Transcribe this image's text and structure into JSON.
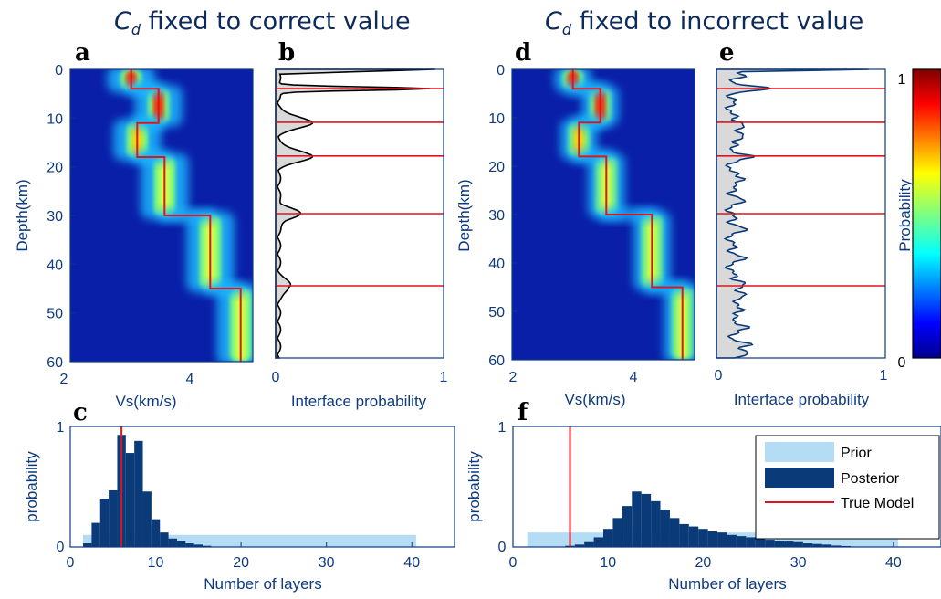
{
  "titles": {
    "left_main": "C",
    "left_sub": "d",
    "left_rest": " fixed to correct value",
    "right_main": "C",
    "right_sub": "d",
    "right_rest": " fixed to incorrect value"
  },
  "panel_letters": [
    "a",
    "b",
    "c",
    "d",
    "e",
    "f"
  ],
  "colors": {
    "axis": "#0d3a80",
    "true_model": "#e0141e",
    "prior": "#b4dcf5",
    "posterior": "#0a3a78",
    "heat_background": "#0a1fa8",
    "interface_fill": "#d9d9d9",
    "interface_line_b": "#000000",
    "interface_line_e": "#0a3a78"
  },
  "chart_data": [
    {
      "id": "a",
      "type": "heatmap",
      "xlabel": "Vs(km/s)",
      "ylabel": "Depth(km)",
      "xlim": [
        2,
        5
      ],
      "ylim": [
        0,
        60
      ],
      "xticks": [
        "2",
        "4"
      ],
      "yticks": [
        "0",
        "10",
        "20",
        "30",
        "40",
        "50",
        "60"
      ],
      "true_model": {
        "depth": [
          0,
          4,
          4,
          11,
          11,
          18,
          18,
          30,
          30,
          45,
          45,
          60
        ],
        "vs": [
          3.0,
          3.0,
          3.45,
          3.45,
          3.1,
          3.1,
          3.55,
          3.55,
          4.3,
          4.3,
          4.8,
          4.8
        ]
      }
    },
    {
      "id": "b",
      "type": "area",
      "xlabel": "Interface probability",
      "xlim": [
        0,
        1
      ],
      "ylim": [
        0,
        60
      ],
      "xticks": [
        "0",
        "1"
      ],
      "interface_depths": [
        4,
        11,
        18,
        30,
        45
      ],
      "peak_probabilities": [
        0.9,
        0.2,
        0.2,
        0.12,
        0.07
      ]
    },
    {
      "id": "c",
      "type": "bar",
      "xlabel": "Number of layers",
      "ylabel": "probability",
      "xlim": [
        0,
        45
      ],
      "ylim": [
        0,
        1
      ],
      "xticks": [
        "0",
        "10",
        "20",
        "30",
        "40"
      ],
      "yticks": [
        "0",
        "1"
      ],
      "true_model_layers": 6,
      "prior": {
        "min": 2,
        "max": 40,
        "value": 0.1
      },
      "posterior": {
        "x": [
          2,
          3,
          4,
          5,
          6,
          7,
          8,
          9,
          10,
          11,
          12,
          13,
          14,
          15,
          16
        ],
        "values": [
          0.03,
          0.2,
          0.4,
          0.47,
          0.93,
          0.78,
          0.88,
          0.46,
          0.23,
          0.12,
          0.07,
          0.05,
          0.03,
          0.02,
          0.01
        ]
      }
    },
    {
      "id": "d",
      "type": "heatmap",
      "xlabel": "Vs(km/s)",
      "ylabel": "Depth(km)",
      "xlim": [
        2,
        5
      ],
      "ylim": [
        0,
        60
      ],
      "xticks": [
        "2",
        "4"
      ],
      "yticks": [
        "0",
        "10",
        "20",
        "30",
        "40",
        "50",
        "60"
      ],
      "true_model": {
        "depth": [
          0,
          4,
          4,
          11,
          11,
          18,
          18,
          30,
          30,
          45,
          45,
          60
        ],
        "vs": [
          3.0,
          3.0,
          3.45,
          3.45,
          3.1,
          3.1,
          3.55,
          3.55,
          4.3,
          4.3,
          4.8,
          4.8
        ]
      }
    },
    {
      "id": "e",
      "type": "area",
      "xlabel": "Interface probability",
      "xlim": [
        0,
        1
      ],
      "ylim": [
        0,
        60
      ],
      "xticks": [
        "0",
        "1"
      ],
      "interface_depths": [
        4,
        11,
        18,
        30,
        45
      ]
    },
    {
      "id": "f",
      "type": "bar",
      "xlabel": "Number of layers",
      "ylabel": "probability",
      "xlim": [
        0,
        45
      ],
      "ylim": [
        0,
        1
      ],
      "xticks": [
        "0",
        "10",
        "20",
        "30",
        "40"
      ],
      "yticks": [
        "0",
        "1"
      ],
      "true_model_layers": 6,
      "prior": {
        "min": 2,
        "max": 40,
        "value": 0.12
      },
      "posterior": {
        "x": [
          6,
          7,
          8,
          9,
          10,
          11,
          12,
          13,
          14,
          15,
          16,
          17,
          18,
          19,
          20,
          21,
          22,
          23,
          24,
          25,
          26,
          27,
          28,
          29,
          30,
          31,
          32,
          33,
          34,
          35
        ],
        "values": [
          0.01,
          0.02,
          0.04,
          0.08,
          0.15,
          0.24,
          0.34,
          0.46,
          0.44,
          0.38,
          0.31,
          0.24,
          0.19,
          0.17,
          0.15,
          0.13,
          0.12,
          0.1,
          0.09,
          0.08,
          0.07,
          0.06,
          0.05,
          0.045,
          0.04,
          0.03,
          0.025,
          0.02,
          0.012,
          0.008
        ]
      },
      "legend": {
        "entries": [
          "Prior",
          "Posterior",
          "True Model"
        ],
        "placement": "top-right"
      }
    }
  ],
  "colorbar": {
    "label": "Probability",
    "min_label": "0",
    "max_label": "1"
  }
}
